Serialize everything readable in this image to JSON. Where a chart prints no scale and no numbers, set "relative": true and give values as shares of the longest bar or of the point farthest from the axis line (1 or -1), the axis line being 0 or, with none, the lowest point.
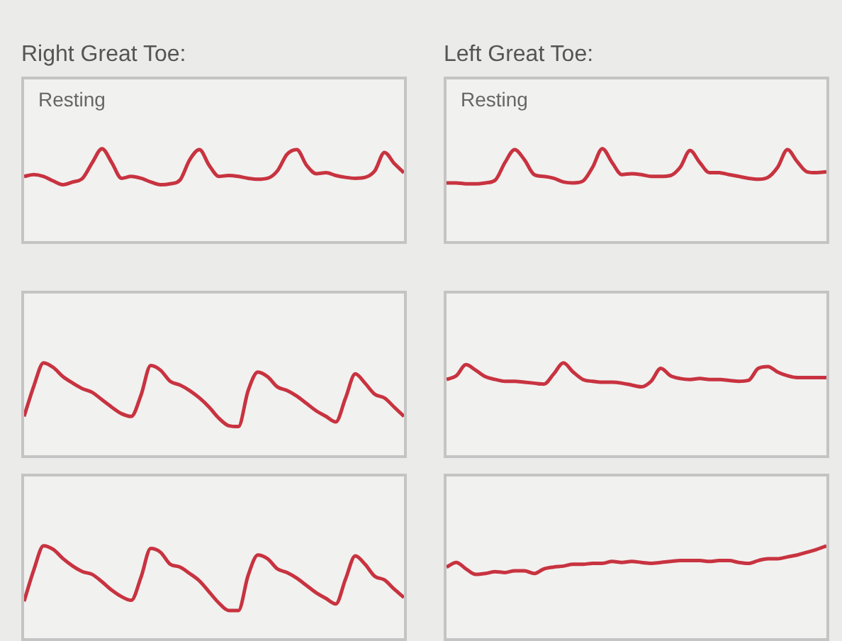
{
  "chart_data": [
    {
      "type": "line",
      "title": "Right Great Toe:",
      "annotations": [
        "Resting"
      ],
      "relative": true,
      "marker": "none",
      "categories": [
        null,
        null,
        null,
        null,
        null,
        null,
        null,
        null,
        null,
        null,
        null,
        null,
        null,
        null,
        null,
        null,
        null,
        null,
        null,
        null,
        null,
        null,
        null,
        null,
        null,
        null,
        null,
        null,
        null,
        null,
        null,
        null,
        null,
        null,
        null,
        null,
        null,
        null,
        null,
        null
      ],
      "series": [
        {
          "color": "#c83340",
          "values": [
            0.7,
            0.72,
            0.7,
            0.65,
            0.61,
            0.64,
            0.68,
            0.85,
            1.0,
            0.85,
            0.68,
            0.7,
            0.68,
            0.64,
            0.61,
            0.62,
            0.66,
            0.88,
            0.99,
            0.82,
            0.7,
            0.71,
            0.7,
            0.68,
            0.67,
            0.68,
            0.76,
            0.94,
            0.99,
            0.82,
            0.73,
            0.74,
            0.71,
            0.69,
            0.68,
            0.69,
            0.76,
            0.96,
            0.84,
            0.74
          ]
        }
      ]
    },
    {
      "type": "line",
      "title": "Left Great Toe:",
      "annotations": [
        "Resting"
      ],
      "relative": true,
      "marker": "none",
      "categories": [
        null,
        null,
        null,
        null,
        null,
        null,
        null,
        null,
        null,
        null,
        null,
        null,
        null,
        null,
        null,
        null,
        null,
        null,
        null,
        null,
        null,
        null,
        null,
        null,
        null,
        null,
        null,
        null,
        null,
        null,
        null,
        null,
        null,
        null,
        null,
        null,
        null,
        null,
        null,
        null
      ],
      "series": [
        {
          "color": "#c83340",
          "values": [
            0.63,
            0.63,
            0.62,
            0.62,
            0.63,
            0.66,
            0.85,
            0.99,
            0.88,
            0.72,
            0.7,
            0.68,
            0.64,
            0.63,
            0.65,
            0.8,
            1.0,
            0.85,
            0.72,
            0.73,
            0.72,
            0.7,
            0.7,
            0.71,
            0.8,
            0.98,
            0.85,
            0.74,
            0.74,
            0.72,
            0.7,
            0.68,
            0.67,
            0.69,
            0.8,
            0.99,
            0.86,
            0.75,
            0.74,
            0.75
          ]
        }
      ]
    },
    {
      "type": "line",
      "relative": true,
      "marker": "none",
      "categories": [
        null,
        null,
        null,
        null,
        null,
        null,
        null,
        null,
        null,
        null,
        null,
        null,
        null,
        null,
        null,
        null,
        null,
        null,
        null,
        null,
        null,
        null,
        null,
        null,
        null,
        null,
        null,
        null,
        null,
        null,
        null,
        null,
        null,
        null,
        null,
        null,
        null,
        null,
        null,
        null
      ],
      "series": [
        {
          "color": "#c83340",
          "values": [
            0.42,
            0.75,
            1.0,
            0.95,
            0.85,
            0.78,
            0.72,
            0.68,
            0.6,
            0.52,
            0.45,
            0.42,
            0.65,
            0.97,
            0.92,
            0.8,
            0.76,
            0.7,
            0.62,
            0.52,
            0.4,
            0.32,
            0.31,
            0.7,
            0.9,
            0.85,
            0.74,
            0.7,
            0.64,
            0.56,
            0.48,
            0.42,
            0.36,
            0.62,
            0.88,
            0.78,
            0.66,
            0.62,
            0.52,
            0.42
          ]
        }
      ]
    },
    {
      "type": "line",
      "relative": true,
      "marker": "none",
      "categories": [
        null,
        null,
        null,
        null,
        null,
        null,
        null,
        null,
        null,
        null,
        null,
        null,
        null,
        null,
        null,
        null,
        null,
        null,
        null,
        null,
        null,
        null,
        null,
        null,
        null,
        null,
        null,
        null,
        null,
        null,
        null,
        null,
        null,
        null,
        null,
        null,
        null,
        null,
        null,
        null
      ],
      "series": [
        {
          "color": "#c83340",
          "values": [
            0.82,
            0.86,
            0.98,
            0.92,
            0.85,
            0.82,
            0.8,
            0.8,
            0.79,
            0.78,
            0.77,
            0.88,
            1.0,
            0.9,
            0.82,
            0.8,
            0.79,
            0.79,
            0.78,
            0.76,
            0.74,
            0.8,
            0.94,
            0.86,
            0.83,
            0.82,
            0.83,
            0.82,
            0.82,
            0.81,
            0.8,
            0.81,
            0.94,
            0.96,
            0.9,
            0.86,
            0.84,
            0.84,
            0.84,
            0.84
          ]
        }
      ]
    },
    {
      "type": "line",
      "relative": true,
      "marker": "none",
      "categories": [
        null,
        null,
        null,
        null,
        null,
        null,
        null,
        null,
        null,
        null,
        null,
        null,
        null,
        null,
        null,
        null,
        null,
        null,
        null,
        null,
        null,
        null,
        null,
        null,
        null,
        null,
        null,
        null,
        null,
        null,
        null,
        null,
        null,
        null,
        null,
        null,
        null,
        null,
        null,
        null
      ],
      "series": [
        {
          "color": "#c83340",
          "values": [
            0.4,
            0.74,
            1.0,
            0.96,
            0.86,
            0.78,
            0.72,
            0.69,
            0.61,
            0.52,
            0.45,
            0.41,
            0.66,
            0.97,
            0.93,
            0.8,
            0.77,
            0.7,
            0.62,
            0.5,
            0.38,
            0.3,
            0.3,
            0.68,
            0.9,
            0.86,
            0.75,
            0.71,
            0.65,
            0.57,
            0.49,
            0.43,
            0.37,
            0.64,
            0.89,
            0.8,
            0.67,
            0.63,
            0.53,
            0.44
          ]
        }
      ]
    },
    {
      "type": "line",
      "relative": true,
      "marker": "none",
      "categories": [
        null,
        null,
        null,
        null,
        null,
        null,
        null,
        null,
        null,
        null,
        null,
        null,
        null,
        null,
        null,
        null,
        null,
        null,
        null,
        null,
        null,
        null,
        null,
        null,
        null,
        null,
        null,
        null,
        null,
        null,
        null,
        null,
        null,
        null,
        null,
        null,
        null,
        null,
        null,
        null
      ],
      "series": [
        {
          "color": "#c83340",
          "values": [
            0.77,
            0.82,
            0.75,
            0.69,
            0.7,
            0.72,
            0.71,
            0.73,
            0.73,
            0.7,
            0.75,
            0.77,
            0.78,
            0.8,
            0.8,
            0.81,
            0.81,
            0.83,
            0.82,
            0.83,
            0.82,
            0.81,
            0.82,
            0.83,
            0.84,
            0.84,
            0.84,
            0.83,
            0.84,
            0.84,
            0.82,
            0.81,
            0.84,
            0.86,
            0.86,
            0.88,
            0.9,
            0.93,
            0.96,
            1.0
          ]
        }
      ]
    }
  ]
}
